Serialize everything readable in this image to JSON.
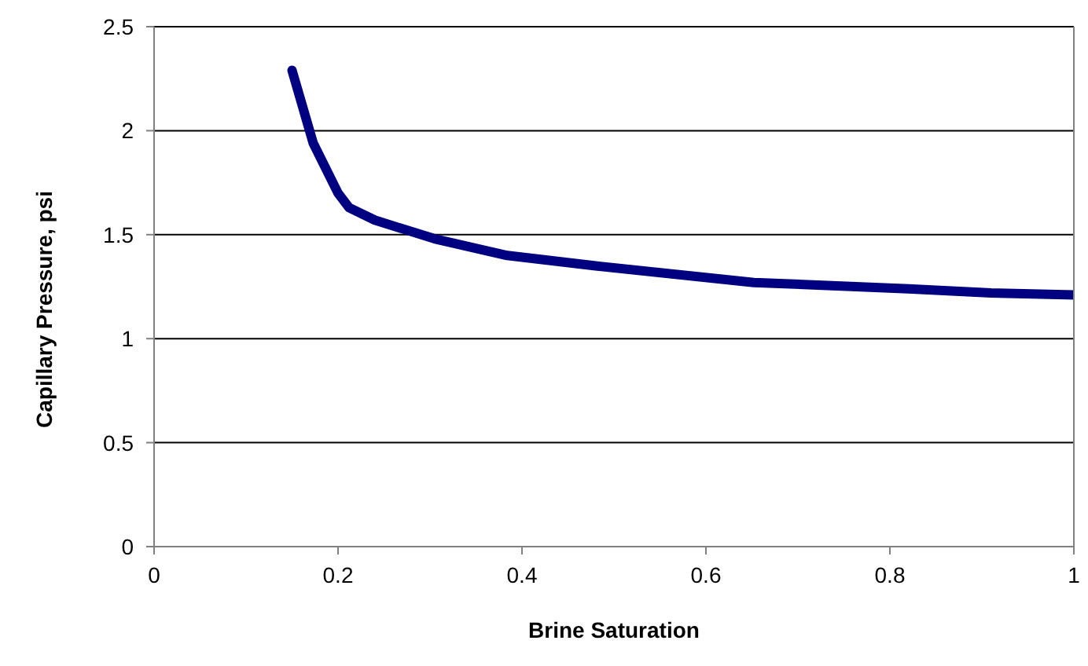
{
  "chart_data": {
    "type": "line",
    "xlabel": "Brine Saturation",
    "ylabel": "Capillary Pressure, psi",
    "x": [
      0.15,
      0.173,
      0.2,
      0.212,
      0.24,
      0.305,
      0.384,
      0.48,
      0.652,
      0.82,
      0.91,
      1.0
    ],
    "series": [
      {
        "color": "#000080",
        "values": [
          2.29,
          1.94,
          1.7,
          1.63,
          1.57,
          1.48,
          1.4,
          1.35,
          1.27,
          1.24,
          1.22,
          1.21
        ]
      }
    ],
    "xlim": [
      0,
      1
    ],
    "xticks": [
      0,
      0.2,
      0.4,
      0.6,
      0.8,
      1
    ],
    "ylim": [
      0,
      2.5
    ],
    "yticks": [
      0,
      0.5,
      1,
      1.5,
      2,
      2.5
    ],
    "grid": "y",
    "legend": false,
    "marker": "none",
    "line_style": "solid"
  }
}
